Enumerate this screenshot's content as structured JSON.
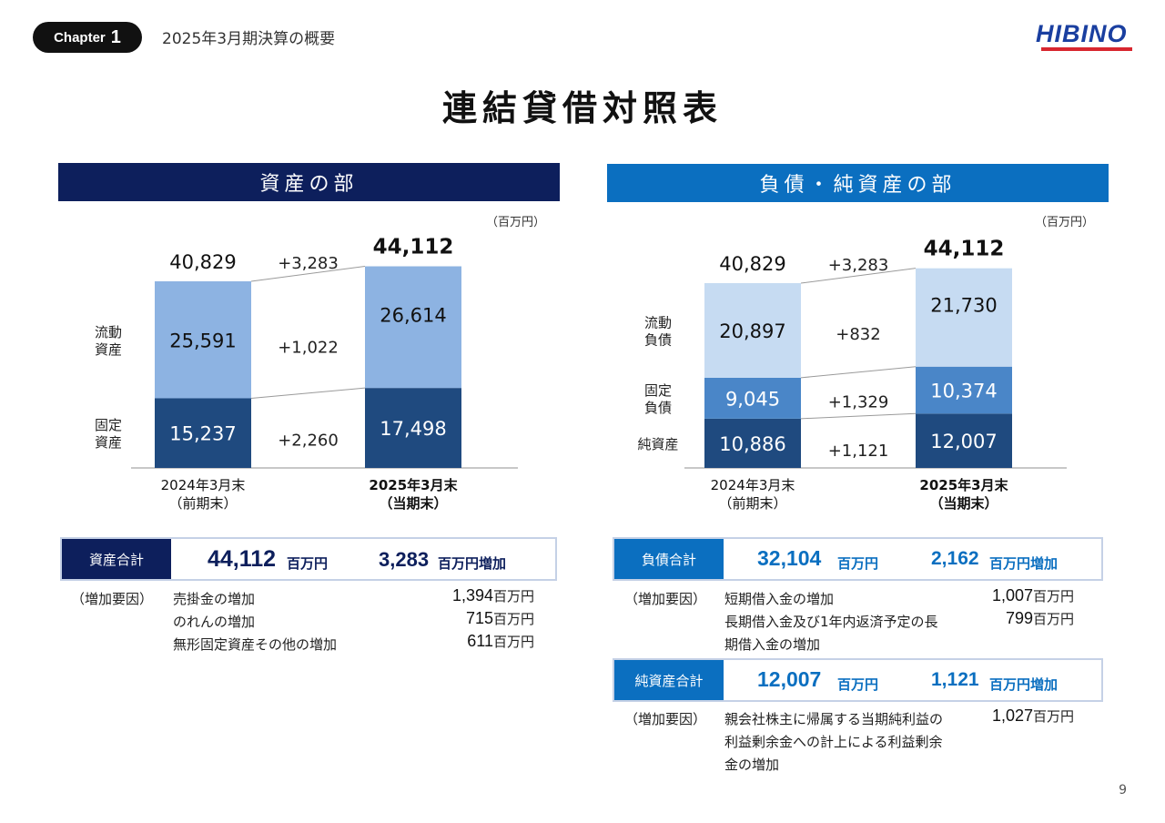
{
  "header": {
    "chapter_word": "Chapter",
    "chapter_num": "1",
    "subtitle": "2025年3月期決算の概要",
    "logo": "HIBINO"
  },
  "title": "連結貸借対照表",
  "left": {
    "section_title": "資産の部",
    "unit": "（百万円）",
    "chart_data": {
      "type": "bar",
      "stacked": true,
      "categories": [
        "2024年3月末（前期末）",
        "2025年3月末（当期末）"
      ],
      "x_labels": [
        [
          "2024年3月末",
          "（前期末）"
        ],
        [
          "2025年3月末",
          "（当期末）"
        ]
      ],
      "series": [
        {
          "name": "固定資産",
          "label_lines": [
            "固定",
            "資産"
          ],
          "values": [
            15237,
            17498
          ],
          "labels": [
            "15,237",
            "17,498"
          ],
          "color": "#1f4a7f",
          "text_color": "#ffffff"
        },
        {
          "name": "流動資産",
          "label_lines": [
            "流動",
            "資産"
          ],
          "values": [
            25591,
            26614
          ],
          "labels": [
            "25,591",
            "26,614"
          ],
          "color": "#8db3e2",
          "text_color": "#111111"
        }
      ],
      "totals": [
        "40,829",
        "44,112"
      ],
      "diffs": {
        "total": "+3,283",
        "series": [
          "+2,260",
          "+1,022"
        ]
      }
    },
    "summary": {
      "label": "資産合計",
      "total_value": "44,112",
      "total_unit": "百万円",
      "change_value": "3,283",
      "change_unit": "百万円増加",
      "label_color": "#0d1f5c",
      "value_color": "#0d1f5c"
    },
    "factors": {
      "heading": "（増加要因）",
      "items": [
        {
          "text": "売掛金の増加",
          "value": "1,394",
          "unit": "百万円"
        },
        {
          "text": "のれんの増加",
          "value": "715",
          "unit": "百万円"
        },
        {
          "text": "無形固定資産その他の増加",
          "value": "611",
          "unit": "百万円"
        }
      ]
    }
  },
  "right": {
    "section_title": "負債・純資産の部",
    "unit": "（百万円）",
    "chart_data": {
      "type": "bar",
      "stacked": true,
      "categories": [
        "2024年3月末（前期末）",
        "2025年3月末（当期末）"
      ],
      "x_labels": [
        [
          "2024年3月末",
          "（前期末）"
        ],
        [
          "2025年3月末",
          "（当期末）"
        ]
      ],
      "series": [
        {
          "name": "純資産",
          "label_lines": [
            "純資産"
          ],
          "values": [
            10886,
            12007
          ],
          "labels": [
            "10,886",
            "12,007"
          ],
          "color": "#1f4a7f",
          "text_color": "#ffffff"
        },
        {
          "name": "固定負債",
          "label_lines": [
            "固定",
            "負債"
          ],
          "values": [
            9045,
            10374
          ],
          "labels": [
            "9,045",
            "10,374"
          ],
          "color": "#4a86c8",
          "text_color": "#ffffff"
        },
        {
          "name": "流動負債",
          "label_lines": [
            "流動",
            "負債"
          ],
          "values": [
            20897,
            21730
          ],
          "labels": [
            "20,897",
            "21,730"
          ],
          "color": "#c6dbf2",
          "text_color": "#111111"
        }
      ],
      "totals": [
        "40,829",
        "44,112"
      ],
      "diffs": {
        "total": "+3,283",
        "series": [
          "+1,121",
          "+1,329",
          "+832"
        ]
      }
    },
    "summary1": {
      "label": "負債合計",
      "total_value": "32,104",
      "total_unit": "百万円",
      "change_value": "2,162",
      "change_unit": "百万円増加",
      "label_color": "#0b6fc0",
      "value_color": "#0b6fc0"
    },
    "factors1": {
      "heading": "（増加要因）",
      "items": [
        {
          "lines": [
            "短期借入金の増加"
          ],
          "value": "1,007",
          "unit": "百万円"
        },
        {
          "lines": [
            "長期借入金及び1年内返済予定の長",
            "期借入金の増加"
          ],
          "value": "799",
          "unit": "百万円"
        }
      ]
    },
    "summary2": {
      "label": "純資産合計",
      "total_value": "12,007",
      "total_unit": "百万円",
      "change_value": "1,121",
      "change_unit": "百万円増加",
      "label_color": "#0b6fc0",
      "value_color": "#0b6fc0"
    },
    "factors2": {
      "heading": "（増加要因）",
      "items": [
        {
          "lines": [
            "親会社株主に帰属する当期純利益の",
            "利益剰余金への計上による利益剰余",
            "金の増加"
          ],
          "value": "1,027",
          "unit": "百万円"
        }
      ]
    }
  },
  "page_number": "9"
}
